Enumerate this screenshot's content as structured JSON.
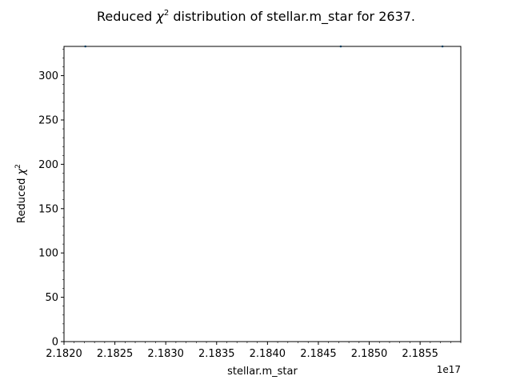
{
  "chart_data": {
    "type": "scatter",
    "title_prefix": "Reduced ",
    "title_chi": "χ",
    "title_sup": "2",
    "title_suffix": " distribution of stellar.m_star for 2637.",
    "xlabel": "stellar.m_star",
    "ylabel_prefix": "Reduced ",
    "ylabel_chi": "χ",
    "ylabel_sup": "2",
    "x_offset_label": "1e17",
    "xlim": [
      2.182,
      2.1859
    ],
    "ylim": [
      0,
      333
    ],
    "x_ticks": [
      2.182,
      2.1825,
      2.183,
      2.1835,
      2.184,
      2.1845,
      2.185,
      2.1855
    ],
    "x_tick_labels": [
      "2.1820",
      "2.1825",
      "2.1830",
      "2.1835",
      "2.1840",
      "2.1845",
      "2.1850",
      "2.1855"
    ],
    "y_ticks": [
      0,
      50,
      100,
      150,
      200,
      250,
      300
    ],
    "y_tick_labels": [
      "0",
      "50",
      "100",
      "150",
      "200",
      "250",
      "300"
    ],
    "x_minor_step": 0.0001,
    "y_minor_step": 10,
    "grid": false,
    "legend": "none",
    "series": [
      {
        "points": [
          [
            2.18221,
            333
          ],
          [
            2.18472,
            333
          ],
          [
            2.18572,
            333
          ]
        ],
        "color": "#1f77b4"
      }
    ]
  }
}
